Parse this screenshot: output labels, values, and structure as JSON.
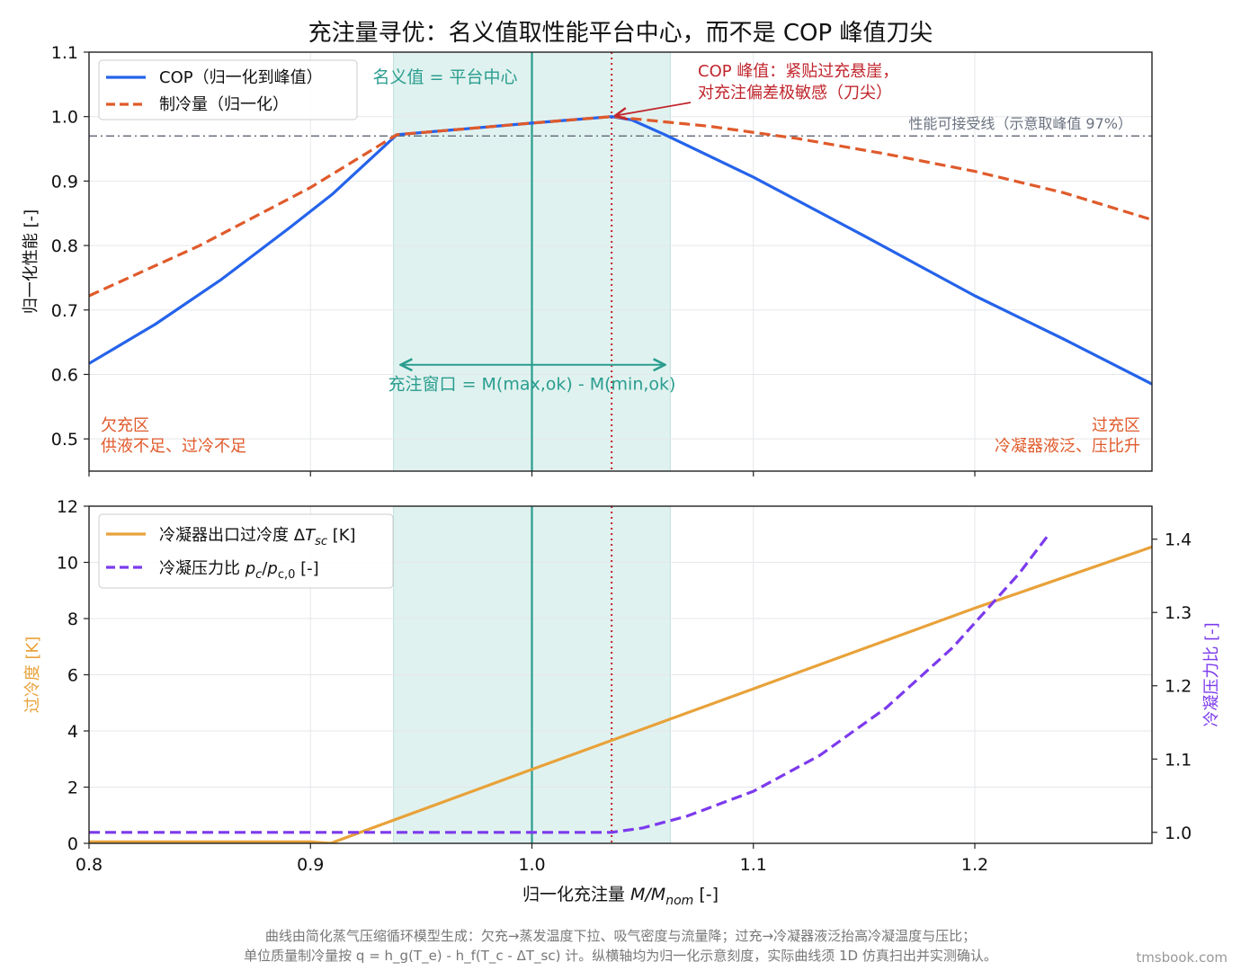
{
  "title": "充注量寻优：名义值取性能平台中心，而不是 COP 峰值刀尖",
  "watermark": "tmsbook.com",
  "footnote": [
    "曲线由简化蒸气压缩循环模型生成：欠充→蒸发温度下拉、吸气密度与流量降；过充→冷凝器液泛抬高冷凝温度与压比；",
    "单位质量制冷量按 q = h_g(T_e) - h_f(T_c - ΔT_sc) 计。纵横轴均为归一化示意刻度，实际曲线须 1D 仿真扫出并实测确认。"
  ],
  "colors": {
    "cop": "#2563eb",
    "capacity": "#e05a2b",
    "threshold": "#6b7280",
    "nominal": "#2a9d8f",
    "window_fill": "#d5eeea",
    "peak": "#c0262d",
    "subcool": "#e8a23a",
    "pressure": "#7c3aed",
    "region_text": "#e05a2b",
    "grid": "#e5e7eb"
  },
  "chart_data": [
    {
      "type": "line",
      "id": "top",
      "ylabel": "归一化性能 [-]",
      "xlim": [
        0.8,
        1.28
      ],
      "ylim": [
        0.45,
        1.1
      ],
      "xticks": [
        0.8,
        0.9,
        1.0,
        1.1,
        1.2
      ],
      "yticks": [
        0.5,
        0.6,
        0.7,
        0.8,
        0.9,
        1.0,
        1.1
      ],
      "ytick_labels": [
        "0.5",
        "0.6",
        "0.7",
        "0.8",
        "0.9",
        "1.0",
        "1.1"
      ],
      "grid": true,
      "legend_position": "upper-left",
      "series": [
        {
          "name": "COP（归一化到峰值）",
          "style": "solid",
          "color_key": "cop",
          "x": [
            0.8,
            0.83,
            0.86,
            0.89,
            0.91,
            0.939,
            0.97,
            1.0,
            1.036,
            1.045,
            1.06,
            1.1,
            1.15,
            1.2,
            1.24,
            1.28
          ],
          "y": [
            0.617,
            0.678,
            0.748,
            0.826,
            0.88,
            0.972,
            0.981,
            0.99,
            1.0,
            0.995,
            0.972,
            0.906,
            0.815,
            0.722,
            0.655,
            0.585
          ]
        },
        {
          "name": "制冷量（归一化）",
          "style": "dashed",
          "color_key": "capacity",
          "x": [
            0.8,
            0.85,
            0.9,
            0.939,
            0.97,
            1.0,
            1.036,
            1.08,
            1.12,
            1.16,
            1.2,
            1.24,
            1.28
          ],
          "y": [
            0.722,
            0.8,
            0.89,
            0.972,
            0.981,
            0.99,
            1.0,
            0.985,
            0.966,
            0.942,
            0.915,
            0.882,
            0.84
          ]
        }
      ],
      "threshold": {
        "y": 0.97,
        "label": "性能可接受线（示意取峰值 97%）"
      },
      "window": {
        "x_start": 0.9375,
        "x_end": 1.0625,
        "label": "充注窗口 = M(max,ok) - M(min,ok)",
        "arrow_y": 0.615
      },
      "nominal": {
        "x": 1.0,
        "label": "名义值 = 平台中心"
      },
      "peak": {
        "x": 1.036,
        "y": 1.0,
        "label_lines": [
          "COP 峰值：紧贴过充悬崖，",
          "对充注偏差极敏感（刀尖）"
        ]
      },
      "regions": {
        "left": [
          "欠充区",
          "供液不足、过冷不足"
        ],
        "right": [
          "过充区",
          "冷凝器液泛、压比升"
        ]
      }
    },
    {
      "type": "line",
      "id": "bottom",
      "xlabel": "归一化充注量 M/M_nom [-]",
      "ylabel_left": "过冷度 [K]",
      "ylabel_right": "冷凝压力比 [-]",
      "xlim": [
        0.8,
        1.28
      ],
      "ylim_left": [
        0,
        12
      ],
      "ylim_right": [
        0.985,
        1.445
      ],
      "xticks": [
        0.8,
        0.9,
        1.0,
        1.1,
        1.2
      ],
      "xtick_labels": [
        "0.8",
        "0.9",
        "1.0",
        "1.1",
        "1.2"
      ],
      "yticks_left": [
        0,
        2,
        4,
        6,
        8,
        10,
        12
      ],
      "yticks_right": [
        1.0,
        1.1,
        1.2,
        1.3,
        1.4
      ],
      "ytick_right_labels": [
        "1.0",
        "1.1",
        "1.2",
        "1.3",
        "1.4"
      ],
      "grid": true,
      "legend_position": "upper-left",
      "series": [
        {
          "name_parts": [
            "冷凝器出口过冷度 ",
            "Δ",
            "T",
            "sc",
            " [K]"
          ],
          "axis": "left",
          "style": "solid",
          "color_key": "subcool",
          "x": [
            0.8,
            0.9,
            0.909,
            1.0,
            1.1,
            1.2,
            1.28
          ],
          "y": [
            0.05,
            0.05,
            0.0,
            2.63,
            5.5,
            8.37,
            10.55
          ]
        },
        {
          "name_parts": [
            "冷凝压力比 ",
            "p",
            "c",
            "/",
            "p",
            "c,0",
            " [-]"
          ],
          "axis": "right",
          "style": "dashed",
          "color_key": "pressure",
          "x": [
            0.8,
            1.0,
            1.036,
            1.05,
            1.07,
            1.1,
            1.13,
            1.16,
            1.19,
            1.22,
            1.233
          ],
          "y": [
            1.0,
            1.0,
            1.0,
            1.006,
            1.022,
            1.056,
            1.105,
            1.17,
            1.252,
            1.353,
            1.405
          ]
        }
      ]
    }
  ]
}
